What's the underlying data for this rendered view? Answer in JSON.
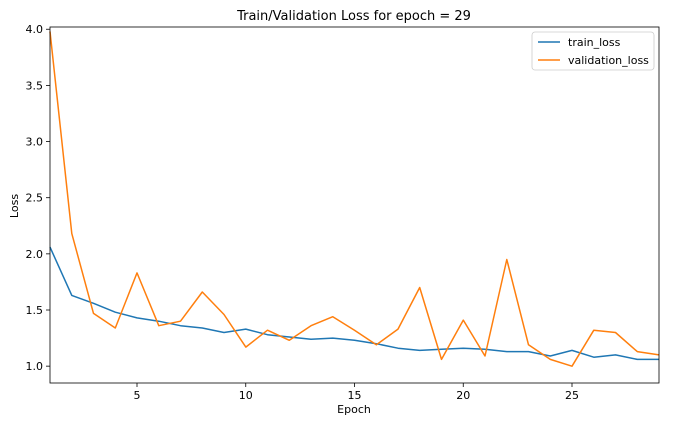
{
  "chart_data": {
    "type": "line",
    "title": "Train/Validation Loss for epoch = 29",
    "xlabel": "Epoch",
    "ylabel": "Loss",
    "xlim": [
      1,
      29
    ],
    "ylim": [
      0.85,
      4.02
    ],
    "x_ticks": [
      5,
      10,
      15,
      20,
      25
    ],
    "y_ticks": [
      1.0,
      1.5,
      2.0,
      2.5,
      3.0,
      3.5,
      4.0
    ],
    "x_tick_labels": [
      "5",
      "10",
      "15",
      "20",
      "25"
    ],
    "y_tick_labels": [
      "1.0",
      "1.5",
      "2.0",
      "2.5",
      "3.0",
      "3.5",
      "4.0"
    ],
    "grid": false,
    "legend": "top-right",
    "x": [
      1,
      2,
      3,
      4,
      5,
      6,
      7,
      8,
      9,
      10,
      11,
      12,
      13,
      14,
      15,
      16,
      17,
      18,
      19,
      20,
      21,
      22,
      23,
      24,
      25,
      26,
      27,
      28,
      29
    ],
    "series": [
      {
        "name": "train_loss",
        "color": "#1f77b4",
        "values": [
          2.06,
          1.63,
          1.56,
          1.48,
          1.43,
          1.4,
          1.36,
          1.34,
          1.3,
          1.33,
          1.28,
          1.26,
          1.24,
          1.25,
          1.23,
          1.2,
          1.16,
          1.14,
          1.15,
          1.16,
          1.15,
          1.13,
          1.13,
          1.09,
          1.14,
          1.08,
          1.1,
          1.06,
          1.06
        ]
      },
      {
        "name": "validation_loss",
        "color": "#ff7f0e",
        "values": [
          3.98,
          2.18,
          1.47,
          1.34,
          1.83,
          1.36,
          1.4,
          1.66,
          1.46,
          1.17,
          1.32,
          1.23,
          1.36,
          1.44,
          1.32,
          1.19,
          1.33,
          1.7,
          1.06,
          1.41,
          1.09,
          1.95,
          1.19,
          1.06,
          1.0,
          1.32,
          1.3,
          1.13,
          1.1
        ]
      }
    ]
  }
}
